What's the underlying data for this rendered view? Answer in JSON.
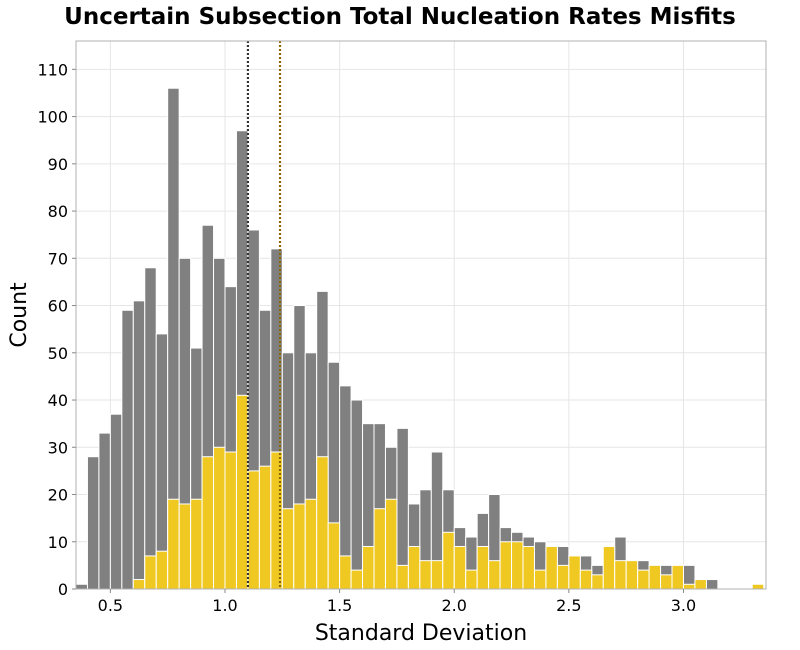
{
  "chart_data": {
    "type": "bar",
    "title": "Uncertain Subsection Total Nucleation Rates Misfits",
    "xlabel": "Standard Deviation",
    "ylabel": "Count",
    "xlim": [
      0.35,
      3.36
    ],
    "ylim": [
      0,
      116
    ],
    "x_ticks": [
      0.5,
      1.0,
      1.5,
      2.0,
      2.5,
      3.0
    ],
    "x_tick_labels": [
      "0.5",
      "1.0",
      "1.5",
      "2.0",
      "2.5",
      "3.0"
    ],
    "y_ticks": [
      0,
      10,
      20,
      30,
      40,
      50,
      60,
      70,
      80,
      90,
      100,
      110
    ],
    "y_tick_labels": [
      "0",
      "10",
      "20",
      "30",
      "40",
      "50",
      "60",
      "70",
      "80",
      "90",
      "100",
      "110"
    ],
    "grid": true,
    "bin_width": 0.05,
    "series": [
      {
        "color": "#808080",
        "bins": [
          [
            0.35,
            1
          ],
          [
            0.4,
            28
          ],
          [
            0.45,
            33
          ],
          [
            0.5,
            37
          ],
          [
            0.55,
            59
          ],
          [
            0.6,
            61
          ],
          [
            0.65,
            68
          ],
          [
            0.7,
            54
          ],
          [
            0.75,
            106
          ],
          [
            0.8,
            70
          ],
          [
            0.85,
            51
          ],
          [
            0.9,
            77
          ],
          [
            0.95,
            70
          ],
          [
            1.0,
            64
          ],
          [
            1.05,
            97
          ],
          [
            1.1,
            76
          ],
          [
            1.15,
            59
          ],
          [
            1.2,
            72
          ],
          [
            1.25,
            50
          ],
          [
            1.3,
            60
          ],
          [
            1.35,
            50
          ],
          [
            1.4,
            63
          ],
          [
            1.45,
            48
          ],
          [
            1.5,
            43
          ],
          [
            1.55,
            40
          ],
          [
            1.6,
            35
          ],
          [
            1.65,
            35
          ],
          [
            1.7,
            30
          ],
          [
            1.75,
            34
          ],
          [
            1.8,
            18
          ],
          [
            1.85,
            21
          ],
          [
            1.9,
            29
          ],
          [
            1.95,
            21
          ],
          [
            2.0,
            13
          ],
          [
            2.05,
            11
          ],
          [
            2.1,
            16
          ],
          [
            2.15,
            20
          ],
          [
            2.2,
            13
          ],
          [
            2.25,
            12
          ],
          [
            2.3,
            11
          ],
          [
            2.35,
            10
          ],
          [
            2.4,
            6
          ],
          [
            2.45,
            9
          ],
          [
            2.5,
            5
          ],
          [
            2.55,
            7
          ],
          [
            2.6,
            5
          ],
          [
            2.65,
            3
          ],
          [
            2.7,
            11
          ],
          [
            2.75,
            6
          ],
          [
            2.8,
            6
          ],
          [
            2.85,
            4
          ],
          [
            2.9,
            5
          ],
          [
            2.95,
            3
          ],
          [
            3.0,
            5
          ],
          [
            3.05,
            1
          ],
          [
            3.1,
            2
          ],
          [
            3.3,
            1
          ]
        ]
      },
      {
        "color": "#f0c822",
        "bins": [
          [
            0.6,
            2
          ],
          [
            0.65,
            7
          ],
          [
            0.7,
            8
          ],
          [
            0.75,
            19
          ],
          [
            0.8,
            18
          ],
          [
            0.85,
            19
          ],
          [
            0.9,
            28
          ],
          [
            0.95,
            30
          ],
          [
            1.0,
            29
          ],
          [
            1.05,
            41
          ],
          [
            1.1,
            25
          ],
          [
            1.15,
            26
          ],
          [
            1.2,
            29
          ],
          [
            1.25,
            17
          ],
          [
            1.3,
            18
          ],
          [
            1.35,
            19
          ],
          [
            1.4,
            28
          ],
          [
            1.45,
            14
          ],
          [
            1.5,
            7
          ],
          [
            1.55,
            4
          ],
          [
            1.6,
            9
          ],
          [
            1.65,
            17
          ],
          [
            1.7,
            19
          ],
          [
            1.75,
            5
          ],
          [
            1.8,
            9
          ],
          [
            1.85,
            6
          ],
          [
            1.9,
            6
          ],
          [
            1.95,
            12
          ],
          [
            2.0,
            9
          ],
          [
            2.05,
            4
          ],
          [
            2.1,
            9
          ],
          [
            2.15,
            6
          ],
          [
            2.2,
            10
          ],
          [
            2.25,
            10
          ],
          [
            2.3,
            9
          ],
          [
            2.35,
            4
          ],
          [
            2.4,
            9
          ],
          [
            2.45,
            5
          ],
          [
            2.5,
            7
          ],
          [
            2.55,
            4
          ],
          [
            2.6,
            3
          ],
          [
            2.65,
            9
          ],
          [
            2.7,
            6
          ],
          [
            2.75,
            6
          ],
          [
            2.8,
            4
          ],
          [
            2.85,
            5
          ],
          [
            2.9,
            3
          ],
          [
            2.95,
            5
          ],
          [
            3.0,
            1
          ],
          [
            3.05,
            2
          ],
          [
            3.3,
            1
          ]
        ]
      }
    ],
    "reference_lines": [
      {
        "x": 1.1,
        "style": "dotted",
        "color": "#333333"
      },
      {
        "x": 1.24,
        "style": "dotted",
        "color": "#8a6a00"
      }
    ]
  }
}
